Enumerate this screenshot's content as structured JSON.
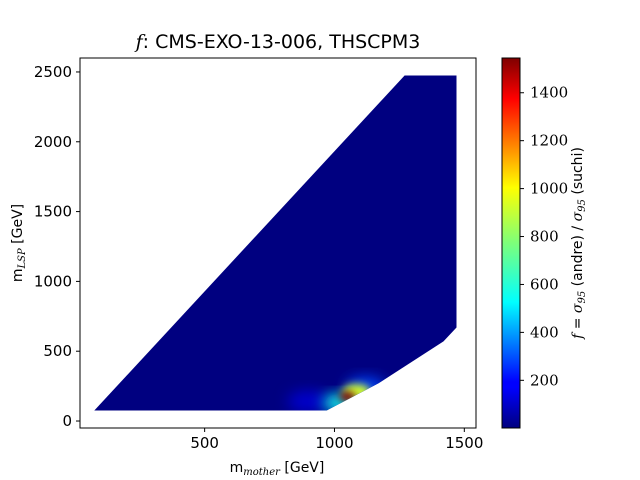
{
  "chart_data": {
    "type": "heatmap",
    "title": {
      "italic": "f",
      "rest": ":  CMS-EXO-13-006,  THSCPM3"
    },
    "xlabel": {
      "main": "m",
      "sub": "mother",
      "unit": "  [GeV]"
    },
    "ylabel": {
      "main": "m",
      "sub": "LSP",
      "unit": "  [GeV]"
    },
    "colorbar_label": {
      "f": "f",
      "eq": " = ",
      "s1": "σ",
      "s1sub": "95",
      "t1": " (andre) / ",
      "s2": "σ",
      "s2sub": "95",
      "t2": " (suchi)"
    },
    "xlim": [
      20,
      1545
    ],
    "ylim": [
      -50,
      2600
    ],
    "xticks": [
      500,
      1000,
      1500
    ],
    "yticks": [
      0,
      500,
      1000,
      1500,
      2000,
      2500
    ],
    "colorbar": {
      "min": 1,
      "max": 1545,
      "ticks": [
        200,
        400,
        600,
        800,
        1000,
        1200,
        1400
      ],
      "colormap": "jet"
    },
    "region_boundary": [
      [
        75,
        75
      ],
      [
        970,
        75
      ],
      [
        1170,
        270
      ],
      [
        1420,
        570
      ],
      [
        1470,
        670
      ],
      [
        1470,
        2475
      ],
      [
        1270,
        2475
      ]
    ],
    "background_value": 1,
    "hotspots": [
      {
        "x": 1050,
        "y": 175,
        "value": 1545
      },
      {
        "x": 1085,
        "y": 210,
        "value": 900
      },
      {
        "x": 1020,
        "y": 130,
        "value": 600
      },
      {
        "x": 1120,
        "y": 240,
        "value": 300
      },
      {
        "x": 900,
        "y": 140,
        "value": 120
      }
    ]
  }
}
